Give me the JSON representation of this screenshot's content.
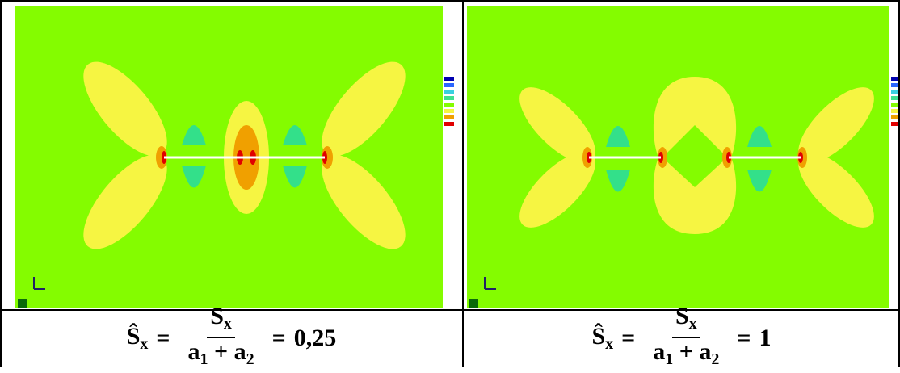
{
  "captions": [
    {
      "lhs": "Ŝ",
      "lhs_sub": "x",
      "eq": "=",
      "num": "S",
      "num_sub": "x",
      "den_a1": "a",
      "den_sub1": "1",
      "den_plus": "+",
      "den_a2": "a",
      "den_sub2": "2",
      "eq2": "=",
      "value": "0,25"
    },
    {
      "lhs": "Ŝ",
      "lhs_sub": "x",
      "eq": "=",
      "num": "S",
      "num_sub": "x",
      "den_a1": "a",
      "den_sub1": "1",
      "den_plus": "+",
      "den_a2": "a",
      "den_sub2": "2",
      "eq2": "=",
      "value": "1"
    }
  ]
}
